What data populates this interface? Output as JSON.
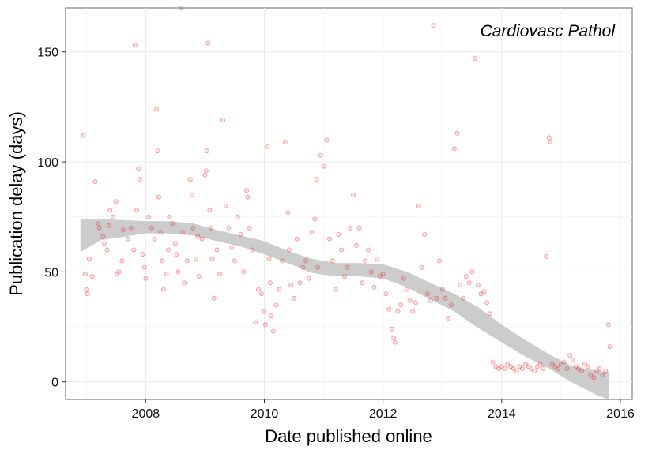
{
  "chart_data": {
    "type": "scatter",
    "title": "",
    "annotation": "Cardiovasc Pathol",
    "xlabel": "Date published online",
    "ylabel": "Publication delay (days)",
    "xlim": [
      2006.65,
      2016.2
    ],
    "ylim": [
      -8,
      170
    ],
    "x_ticks": [
      2008,
      2010,
      2012,
      2014,
      2016
    ],
    "y_ticks": [
      0,
      50,
      100,
      150
    ],
    "grid": true,
    "point_color": "#e31a1c",
    "ribbon_color": "#cccccc",
    "points": [
      [
        2006.95,
        112
      ],
      [
        2006.98,
        49
      ],
      [
        2007.0,
        42
      ],
      [
        2007.02,
        40
      ],
      [
        2007.05,
        56
      ],
      [
        2007.1,
        48
      ],
      [
        2007.15,
        91
      ],
      [
        2007.2,
        72
      ],
      [
        2007.22,
        70
      ],
      [
        2007.28,
        66
      ],
      [
        2007.3,
        63
      ],
      [
        2007.35,
        60
      ],
      [
        2007.38,
        71
      ],
      [
        2007.4,
        78
      ],
      [
        2007.45,
        75
      ],
      [
        2007.5,
        82
      ],
      [
        2007.52,
        49
      ],
      [
        2007.55,
        50
      ],
      [
        2007.6,
        55
      ],
      [
        2007.62,
        69
      ],
      [
        2007.7,
        65
      ],
      [
        2007.75,
        70
      ],
      [
        2007.8,
        60
      ],
      [
        2007.85,
        78
      ],
      [
        2007.88,
        97
      ],
      [
        2007.9,
        92
      ],
      [
        2007.82,
        153
      ],
      [
        2007.95,
        58
      ],
      [
        2007.98,
        52
      ],
      [
        2008.0,
        47
      ],
      [
        2008.05,
        75
      ],
      [
        2008.1,
        70
      ],
      [
        2008.15,
        65
      ],
      [
        2008.18,
        124
      ],
      [
        2008.2,
        105
      ],
      [
        2008.22,
        84
      ],
      [
        2008.25,
        68
      ],
      [
        2008.28,
        55
      ],
      [
        2008.3,
        42
      ],
      [
        2008.35,
        49
      ],
      [
        2008.38,
        60
      ],
      [
        2008.4,
        75
      ],
      [
        2008.45,
        72
      ],
      [
        2008.5,
        63
      ],
      [
        2008.52,
        58
      ],
      [
        2008.55,
        50
      ],
      [
        2008.6,
        170
      ],
      [
        2008.62,
        68
      ],
      [
        2008.65,
        45
      ],
      [
        2008.7,
        55
      ],
      [
        2008.75,
        92
      ],
      [
        2008.78,
        85
      ],
      [
        2008.8,
        70
      ],
      [
        2008.85,
        56
      ],
      [
        2008.88,
        66
      ],
      [
        2008.9,
        48
      ],
      [
        2008.95,
        65
      ],
      [
        2009.0,
        94
      ],
      [
        2009.02,
        96
      ],
      [
        2009.03,
        105
      ],
      [
        2009.05,
        154
      ],
      [
        2009.08,
        78
      ],
      [
        2009.1,
        70
      ],
      [
        2009.12,
        56
      ],
      [
        2009.15,
        38
      ],
      [
        2009.2,
        60
      ],
      [
        2009.25,
        49
      ],
      [
        2009.3,
        119
      ],
      [
        2009.35,
        80
      ],
      [
        2009.4,
        70
      ],
      [
        2009.45,
        61
      ],
      [
        2009.5,
        55
      ],
      [
        2009.55,
        75
      ],
      [
        2009.6,
        67
      ],
      [
        2009.65,
        50
      ],
      [
        2009.7,
        87
      ],
      [
        2009.72,
        84
      ],
      [
        2009.75,
        70
      ],
      [
        2009.8,
        60
      ],
      [
        2009.85,
        27
      ],
      [
        2009.9,
        42
      ],
      [
        2009.95,
        40
      ],
      [
        2010.0,
        32
      ],
      [
        2010.02,
        26
      ],
      [
        2010.05,
        107
      ],
      [
        2010.08,
        56
      ],
      [
        2010.1,
        45
      ],
      [
        2010.12,
        30
      ],
      [
        2010.15,
        23
      ],
      [
        2010.2,
        35
      ],
      [
        2010.25,
        42
      ],
      [
        2010.3,
        55
      ],
      [
        2010.35,
        109
      ],
      [
        2010.4,
        77
      ],
      [
        2010.42,
        60
      ],
      [
        2010.45,
        44
      ],
      [
        2010.5,
        38
      ],
      [
        2010.55,
        65
      ],
      [
        2010.6,
        45
      ],
      [
        2010.65,
        52
      ],
      [
        2010.7,
        55
      ],
      [
        2010.75,
        47
      ],
      [
        2010.8,
        68
      ],
      [
        2010.85,
        74
      ],
      [
        2010.88,
        92
      ],
      [
        2010.9,
        52
      ],
      [
        2010.95,
        103
      ],
      [
        2011.0,
        98
      ],
      [
        2011.05,
        110
      ],
      [
        2011.1,
        65
      ],
      [
        2011.15,
        55
      ],
      [
        2011.2,
        42
      ],
      [
        2011.25,
        67
      ],
      [
        2011.3,
        60
      ],
      [
        2011.35,
        48
      ],
      [
        2011.4,
        52
      ],
      [
        2011.45,
        70
      ],
      [
        2011.5,
        85
      ],
      [
        2011.55,
        62
      ],
      [
        2011.6,
        70
      ],
      [
        2011.65,
        45
      ],
      [
        2011.7,
        55
      ],
      [
        2011.75,
        60
      ],
      [
        2011.8,
        50
      ],
      [
        2011.85,
        43
      ],
      [
        2011.9,
        56
      ],
      [
        2011.95,
        48
      ],
      [
        2012.0,
        49
      ],
      [
        2012.05,
        40
      ],
      [
        2012.1,
        33
      ],
      [
        2012.15,
        24
      ],
      [
        2012.18,
        20
      ],
      [
        2012.2,
        18
      ],
      [
        2012.25,
        32
      ],
      [
        2012.3,
        35
      ],
      [
        2012.35,
        47
      ],
      [
        2012.4,
        42
      ],
      [
        2012.45,
        37
      ],
      [
        2012.5,
        32
      ],
      [
        2012.55,
        36
      ],
      [
        2012.6,
        80
      ],
      [
        2012.65,
        52
      ],
      [
        2012.7,
        67
      ],
      [
        2012.75,
        40
      ],
      [
        2012.8,
        37
      ],
      [
        2012.85,
        162
      ],
      [
        2012.9,
        38
      ],
      [
        2012.95,
        55
      ],
      [
        2013.0,
        42
      ],
      [
        2013.05,
        38
      ],
      [
        2013.1,
        29
      ],
      [
        2013.15,
        35
      ],
      [
        2013.2,
        106
      ],
      [
        2013.25,
        113
      ],
      [
        2013.3,
        44
      ],
      [
        2013.35,
        38
      ],
      [
        2013.4,
        48
      ],
      [
        2013.45,
        45
      ],
      [
        2013.5,
        50
      ],
      [
        2013.55,
        147
      ],
      [
        2013.6,
        44
      ],
      [
        2013.65,
        40
      ],
      [
        2013.7,
        41
      ],
      [
        2013.75,
        36
      ],
      [
        2013.8,
        31
      ],
      [
        2013.85,
        9
      ],
      [
        2013.9,
        7
      ],
      [
        2013.95,
        6
      ],
      [
        2014.0,
        7
      ],
      [
        2014.05,
        6
      ],
      [
        2014.1,
        8
      ],
      [
        2014.15,
        7
      ],
      [
        2014.2,
        6
      ],
      [
        2014.25,
        5
      ],
      [
        2014.3,
        7
      ],
      [
        2014.35,
        6
      ],
      [
        2014.4,
        8
      ],
      [
        2014.45,
        7
      ],
      [
        2014.5,
        6
      ],
      [
        2014.55,
        5
      ],
      [
        2014.6,
        7
      ],
      [
        2014.65,
        8
      ],
      [
        2014.7,
        6
      ],
      [
        2014.75,
        57
      ],
      [
        2014.8,
        111
      ],
      [
        2014.82,
        109
      ],
      [
        2014.85,
        8
      ],
      [
        2014.9,
        7
      ],
      [
        2014.95,
        6
      ],
      [
        2015.0,
        8
      ],
      [
        2015.05,
        9
      ],
      [
        2015.1,
        6
      ],
      [
        2015.15,
        12
      ],
      [
        2015.2,
        10
      ],
      [
        2015.25,
        7
      ],
      [
        2015.3,
        6
      ],
      [
        2015.35,
        5
      ],
      [
        2015.4,
        8
      ],
      [
        2015.45,
        7
      ],
      [
        2015.5,
        3
      ],
      [
        2015.55,
        2
      ],
      [
        2015.6,
        5
      ],
      [
        2015.65,
        6
      ],
      [
        2015.7,
        3
      ],
      [
        2015.75,
        5
      ],
      [
        2015.8,
        26
      ],
      [
        2015.82,
        16
      ]
    ],
    "smooth_lower": [
      [
        2006.9,
        59
      ],
      [
        2007.25,
        64.5
      ],
      [
        2007.65,
        66
      ],
      [
        2008.0,
        67.5
      ],
      [
        2008.4,
        67.5
      ],
      [
        2008.8,
        66.5
      ],
      [
        2009.2,
        64
      ],
      [
        2009.6,
        61.5
      ],
      [
        2010.0,
        58
      ],
      [
        2010.4,
        54
      ],
      [
        2010.8,
        49.5
      ],
      [
        2011.2,
        48
      ],
      [
        2011.6,
        48
      ],
      [
        2012.0,
        47
      ],
      [
        2012.4,
        43
      ],
      [
        2012.8,
        37.5
      ],
      [
        2013.2,
        32
      ],
      [
        2013.6,
        24.5
      ],
      [
        2014.0,
        18
      ],
      [
        2014.4,
        11.5
      ],
      [
        2014.8,
        6
      ],
      [
        2015.2,
        -0.5
      ],
      [
        2015.6,
        -6
      ],
      [
        2015.8,
        -8
      ]
    ],
    "smooth_upper": [
      [
        2006.9,
        74
      ],
      [
        2007.25,
        74
      ],
      [
        2007.65,
        73.5
      ],
      [
        2008.0,
        73
      ],
      [
        2008.4,
        73
      ],
      [
        2008.8,
        72
      ],
      [
        2009.2,
        69
      ],
      [
        2009.6,
        66.5
      ],
      [
        2010.0,
        64
      ],
      [
        2010.4,
        59.5
      ],
      [
        2010.8,
        56
      ],
      [
        2011.2,
        54
      ],
      [
        2011.6,
        54
      ],
      [
        2012.0,
        53.5
      ],
      [
        2012.4,
        50
      ],
      [
        2012.8,
        45
      ],
      [
        2013.2,
        40
      ],
      [
        2013.6,
        34
      ],
      [
        2014.0,
        26
      ],
      [
        2014.4,
        19
      ],
      [
        2014.8,
        12.5
      ],
      [
        2015.2,
        7
      ],
      [
        2015.6,
        5
      ],
      [
        2015.8,
        4.5
      ]
    ]
  }
}
